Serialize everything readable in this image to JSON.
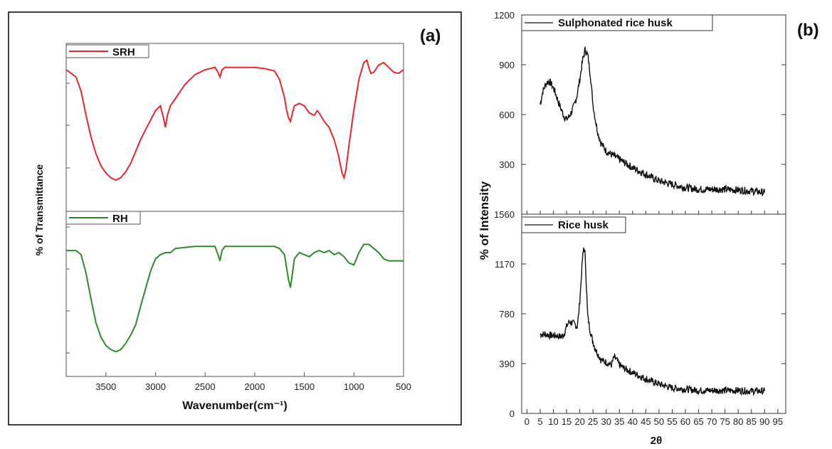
{
  "chart_data": [
    {
      "panel_label": "(a)",
      "type": "line",
      "xlabel": "Wavenumber(cm⁻¹)",
      "ylabel": "% of Transmittance",
      "xlim": [
        3900,
        500
      ],
      "xticks": [
        "3500",
        "3000",
        "2500",
        "2000",
        "1500",
        "1000",
        "500"
      ],
      "yticks_shown": false,
      "series": [
        {
          "name": "SRH",
          "color": "#e8262e",
          "x": [
            3900,
            3850,
            3800,
            3750,
            3700,
            3650,
            3600,
            3550,
            3500,
            3450,
            3400,
            3350,
            3300,
            3250,
            3200,
            3150,
            3100,
            3050,
            3000,
            2950,
            2920,
            2900,
            2880,
            2850,
            2800,
            2700,
            2600,
            2500,
            2400,
            2370,
            2350,
            2330,
            2300,
            2200,
            2100,
            2000,
            1900,
            1800,
            1750,
            1700,
            1680,
            1660,
            1640,
            1620,
            1600,
            1550,
            1500,
            1450,
            1400,
            1370,
            1350,
            1300,
            1250,
            1200,
            1160,
            1140,
            1120,
            1100,
            1080,
            1050,
            1000,
            950,
            900,
            870,
            850,
            830,
            800,
            750,
            700,
            650,
            600,
            550,
            500
          ],
          "y": [
            88,
            85,
            82,
            70,
            50,
            32,
            18,
            8,
            2,
            -2,
            -4,
            -2,
            3,
            10,
            20,
            30,
            38,
            46,
            54,
            58,
            48,
            40,
            50,
            58,
            64,
            76,
            84,
            88,
            90,
            86,
            82,
            88,
            90,
            90,
            90,
            90,
            89,
            87,
            80,
            65,
            55,
            48,
            45,
            52,
            58,
            60,
            58,
            52,
            50,
            54,
            52,
            45,
            40,
            30,
            18,
            10,
            2,
            -2,
            5,
            25,
            55,
            80,
            94,
            96,
            90,
            85,
            86,
            92,
            94,
            90,
            86,
            85,
            88
          ]
        },
        {
          "name": "RH",
          "color": "#2a8d2a",
          "x": [
            3900,
            3850,
            3800,
            3750,
            3700,
            3650,
            3600,
            3550,
            3500,
            3450,
            3400,
            3350,
            3300,
            3250,
            3200,
            3150,
            3100,
            3050,
            3000,
            2950,
            2900,
            2850,
            2800,
            2600,
            2400,
            2370,
            2350,
            2330,
            2300,
            2200,
            2000,
            1800,
            1750,
            1700,
            1680,
            1660,
            1640,
            1620,
            1600,
            1550,
            1500,
            1450,
            1400,
            1350,
            1300,
            1250,
            1200,
            1150,
            1100,
            1050,
            1000,
            950,
            900,
            850,
            800,
            750,
            700,
            650,
            600,
            550,
            500
          ],
          "y": [
            82,
            82,
            82,
            78,
            60,
            35,
            12,
            -2,
            -10,
            -14,
            -16,
            -14,
            -8,
            0,
            10,
            28,
            45,
            62,
            74,
            78,
            80,
            80,
            84,
            86,
            86,
            78,
            72,
            82,
            86,
            86,
            86,
            86,
            84,
            78,
            66,
            54,
            46,
            60,
            74,
            80,
            78,
            76,
            80,
            82,
            80,
            82,
            78,
            80,
            76,
            70,
            68,
            80,
            88,
            88,
            84,
            80,
            74,
            72,
            72,
            72,
            72
          ]
        }
      ]
    },
    {
      "panel_label": "(b)",
      "type": "line",
      "xlabel": "2θ",
      "ylabel": "% of Intensity",
      "xlim": [
        -2,
        98
      ],
      "xticks": [
        0,
        5,
        10,
        15,
        20,
        25,
        30,
        35,
        40,
        45,
        50,
        55,
        60,
        65,
        70,
        75,
        80,
        85,
        90,
        95
      ],
      "series": [
        {
          "name": "Sulphonated rice husk",
          "color": "#111111",
          "ylim": [
            0,
            1200
          ],
          "yticks": [
            300,
            600,
            900,
            1200
          ],
          "x": [
            5,
            6,
            7,
            8,
            9,
            10,
            11,
            12,
            13,
            14,
            15,
            16,
            17,
            18,
            19,
            20,
            21,
            22,
            23,
            24,
            25,
            26,
            27,
            28,
            30,
            32,
            35,
            40,
            45,
            50,
            55,
            60,
            65,
            70,
            75,
            80,
            85,
            90
          ],
          "y": [
            660,
            740,
            780,
            800,
            790,
            760,
            720,
            670,
            630,
            590,
            570,
            590,
            620,
            660,
            720,
            810,
            920,
            990,
            960,
            840,
            660,
            560,
            480,
            430,
            380,
            360,
            330,
            280,
            240,
            200,
            180,
            160,
            150,
            150,
            150,
            145,
            140,
            130
          ]
        },
        {
          "name": "Rice husk",
          "color": "#111111",
          "ylim": [
            0,
            1560
          ],
          "yticks": [
            0,
            390,
            780,
            1170,
            1560
          ],
          "x": [
            5,
            7,
            9,
            11,
            13,
            14,
            15,
            16,
            17,
            18,
            19,
            19.5,
            20,
            21,
            21.5,
            22,
            22.5,
            23,
            24,
            25,
            26,
            27,
            28,
            30,
            32,
            33,
            34,
            35,
            37,
            40,
            45,
            50,
            55,
            60,
            65,
            70,
            75,
            80,
            85,
            90
          ],
          "y": [
            620,
            620,
            610,
            610,
            600,
            620,
            680,
            720,
            710,
            700,
            680,
            760,
            880,
            1200,
            1300,
            1250,
            1000,
            760,
            640,
            560,
            500,
            460,
            420,
            400,
            380,
            440,
            420,
            380,
            350,
            320,
            270,
            230,
            200,
            190,
            180,
            180,
            180,
            180,
            175,
            175
          ]
        }
      ]
    }
  ]
}
